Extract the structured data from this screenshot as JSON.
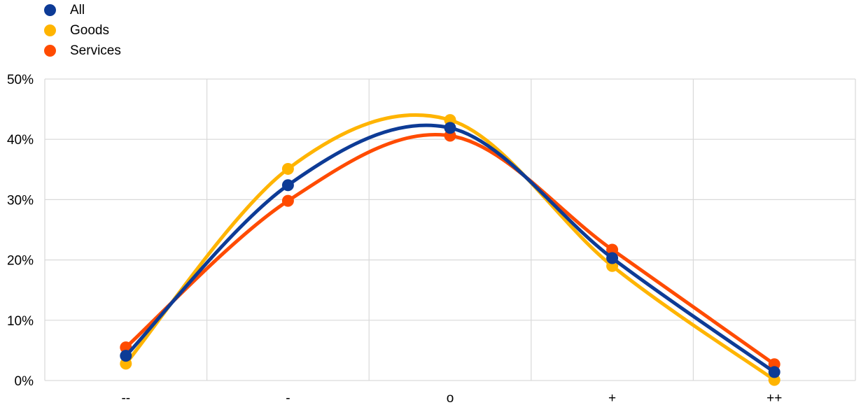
{
  "chart_data": {
    "type": "line",
    "title": "",
    "xlabel": "",
    "ylabel": "",
    "categories": [
      "--",
      "-",
      "o",
      "+",
      "++"
    ],
    "ylim": [
      0,
      50
    ],
    "yticks": [
      0,
      10,
      20,
      30,
      40,
      50
    ],
    "ytick_labels": [
      "0%",
      "10%",
      "20%",
      "30%",
      "40%",
      "50%"
    ],
    "grid": true,
    "legend": "top-left",
    "series": [
      {
        "name": "All",
        "color": "#0D3B96",
        "values": [
          4.1,
          32.4,
          41.9,
          20.3,
          1.4
        ]
      },
      {
        "name": "Goods",
        "color": "#FFB400",
        "values": [
          2.8,
          35.1,
          43.2,
          19.0,
          0.1
        ]
      },
      {
        "name": "Services",
        "color": "#FF4B00",
        "values": [
          5.5,
          29.8,
          40.6,
          21.7,
          2.7
        ]
      }
    ]
  }
}
